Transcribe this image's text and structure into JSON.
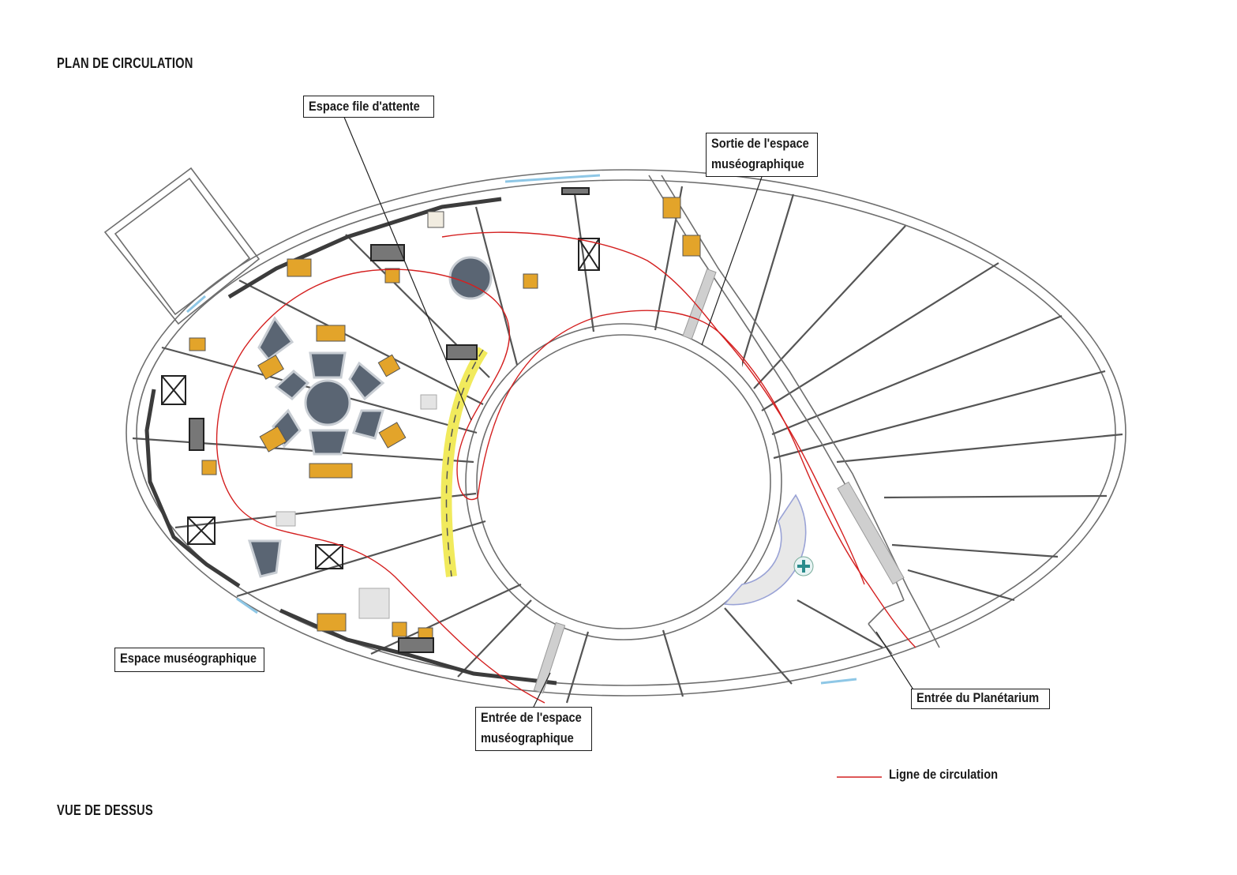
{
  "title": "PLAN DE CIRCULATION",
  "subtitle": "VUE DE DESSUS",
  "labels": {
    "queue": "Espace file d'attente",
    "exit_line1": "Sortie de l'espace",
    "exit_line2": "muséographique",
    "museum": "Espace muséographique",
    "entry_line1": "Entrée de l'espace",
    "entry_line2": "muséographique",
    "planetarium": "Entrée du Planétarium"
  },
  "legend": {
    "circulation": "Ligne de circulation"
  },
  "colors": {
    "wall": "#6e6e6e",
    "circulation": "#d42020",
    "furniture": "#e3a42a",
    "panel": "#3c3c3c",
    "table": "#5a6573",
    "highlight": "#f1ea5c",
    "glass": "#8ec7e6",
    "background": "#ffffff"
  }
}
